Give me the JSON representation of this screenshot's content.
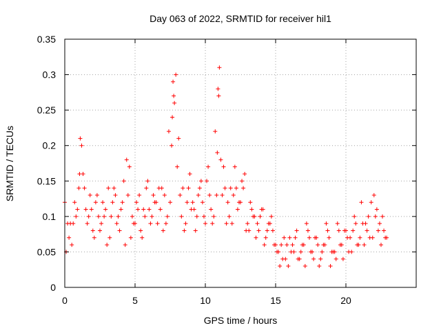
{
  "chart_data": {
    "type": "scatter",
    "title": "Day 063 of 2022, SRMTID for receiver hil1",
    "xlabel": "GPS time / hours",
    "ylabel": "SRMTID / TECUs",
    "xlim": [
      0,
      25
    ],
    "ylim": [
      0,
      0.35
    ],
    "xticks": [
      0,
      5,
      10,
      15,
      20
    ],
    "xtick_labels": [
      "0",
      "5",
      "10",
      "15",
      "20"
    ],
    "yticks": [
      0,
      0.05,
      0.1,
      0.15,
      0.2,
      0.25,
      0.3,
      0.35
    ],
    "ytick_labels": [
      "0",
      "0.05",
      "0.1",
      "0.15",
      "0.2",
      "0.25",
      "0.3",
      "0.35"
    ],
    "grid": true,
    "marker": "+",
    "marker_color": "#ff0000",
    "series": [
      {
        "name": "SRMTID",
        "x": [
          0.0,
          0.3,
          0.6,
          0.9,
          1.1,
          1.4,
          1.7,
          2.0,
          2.3,
          2.6,
          2.9,
          3.2,
          3.5,
          3.8,
          4.1,
          4.4,
          4.7,
          5.0,
          5.3,
          5.6,
          5.9,
          6.2,
          6.5,
          6.8,
          7.1,
          7.4,
          7.7,
          7.8,
          8.0,
          8.3,
          8.6,
          8.9,
          9.2,
          9.5,
          9.8,
          10.1,
          10.4,
          10.7,
          10.9,
          11.0,
          11.3,
          11.6,
          11.9,
          12.2,
          12.5,
          12.8,
          13.1,
          13.4,
          13.7,
          14.0,
          14.3,
          14.6,
          14.9,
          15.2,
          15.5,
          15.8,
          16.1,
          16.4,
          16.7,
          17.0,
          17.3,
          17.6,
          17.9,
          18.2,
          18.5,
          18.8,
          19.1,
          19.4,
          19.7,
          20.0,
          20.3,
          20.6,
          20.9,
          21.2,
          21.5,
          21.8,
          22.1,
          22.4,
          22.7,
          0.1,
          0.4,
          0.7,
          1.0,
          1.2,
          1.5,
          1.8,
          2.1,
          2.4,
          2.7,
          3.0,
          3.3,
          3.6,
          3.9,
          4.2,
          4.5,
          4.8,
          5.1,
          5.4,
          5.7,
          6.0,
          6.3,
          6.6,
          6.9,
          7.2,
          7.5,
          7.6,
          7.9,
          8.1,
          8.4,
          8.7,
          9.0,
          9.3,
          9.6,
          9.9,
          10.2,
          10.5,
          10.8,
          11.1,
          11.4,
          11.7,
          12.0,
          12.3,
          12.6,
          12.9,
          13.2,
          13.5,
          13.8,
          14.1,
          14.4,
          14.7,
          15.0,
          15.3,
          15.6,
          15.9,
          16.2,
          16.5,
          16.8,
          17.1,
          17.4,
          17.7,
          18.0,
          18.3,
          18.6,
          18.9,
          19.2,
          19.5,
          19.8,
          20.1,
          20.4,
          20.7,
          21.0,
          21.3,
          21.6,
          21.9,
          22.2,
          22.5,
          22.8,
          0.2,
          0.5,
          0.8,
          1.05,
          1.3,
          1.6,
          1.9,
          2.2,
          2.5,
          2.8,
          3.1,
          3.4,
          3.7,
          4.0,
          4.3,
          4.6,
          4.9,
          5.2,
          5.5,
          5.8,
          6.1,
          6.4,
          6.7,
          7.0,
          7.3,
          7.65,
          7.75,
          8.2,
          8.5,
          8.8,
          9.1,
          9.4,
          9.7,
          10.0,
          10.3,
          10.6,
          10.85,
          10.95,
          11.2,
          11.5,
          11.8,
          12.1,
          12.4,
          12.7,
          13.0,
          13.3,
          13.6,
          13.9,
          14.2,
          14.5,
          14.8,
          15.1,
          15.4,
          15.7,
          16.0,
          16.3,
          16.6,
          16.9,
          17.2,
          17.5,
          17.8,
          18.1,
          18.4,
          18.7,
          19.0,
          19.3,
          19.6,
          19.9,
          20.2,
          20.5,
          20.8,
          21.1,
          21.4,
          21.7,
          22.0,
          22.3,
          22.6,
          22.9
        ],
        "y": [
          0.12,
          0.07,
          0.09,
          0.11,
          0.21,
          0.14,
          0.1,
          0.08,
          0.13,
          0.09,
          0.11,
          0.07,
          0.14,
          0.1,
          0.12,
          0.18,
          0.07,
          0.09,
          0.13,
          0.11,
          0.15,
          0.1,
          0.12,
          0.11,
          0.13,
          0.22,
          0.29,
          0.26,
          0.17,
          0.1,
          0.09,
          0.16,
          0.11,
          0.13,
          0.12,
          0.15,
          0.11,
          0.22,
          0.28,
          0.31,
          0.17,
          0.12,
          0.09,
          0.14,
          0.12,
          0.16,
          0.08,
          0.1,
          0.09,
          0.11,
          0.07,
          0.09,
          0.06,
          0.05,
          0.04,
          0.06,
          0.05,
          0.07,
          0.04,
          0.06,
          0.08,
          0.05,
          0.07,
          0.04,
          0.06,
          0.07,
          0.05,
          0.09,
          0.06,
          0.08,
          0.07,
          0.1,
          0.06,
          0.09,
          0.08,
          0.12,
          0.1,
          0.09,
          0.08,
          0.05,
          0.09,
          0.12,
          0.14,
          0.2,
          0.11,
          0.13,
          0.07,
          0.1,
          0.12,
          0.06,
          0.1,
          0.13,
          0.08,
          0.15,
          0.13,
          0.1,
          0.12,
          0.08,
          0.1,
          0.11,
          0.13,
          0.09,
          0.14,
          0.09,
          0.12,
          0.2,
          0.3,
          0.21,
          0.14,
          0.12,
          0.11,
          0.08,
          0.14,
          0.1,
          0.17,
          0.09,
          0.13,
          0.18,
          0.14,
          0.1,
          0.13,
          0.11,
          0.15,
          0.08,
          0.12,
          0.1,
          0.08,
          0.11,
          0.08,
          0.1,
          0.06,
          0.03,
          0.07,
          0.03,
          0.06,
          0.08,
          0.05,
          0.03,
          0.07,
          0.04,
          0.06,
          0.05,
          0.09,
          0.03,
          0.05,
          0.08,
          0.04,
          0.07,
          0.05,
          0.09,
          0.07,
          0.06,
          0.1,
          0.07,
          0.11,
          0.06,
          0.07,
          0.09,
          0.06,
          0.1,
          0.16,
          0.16,
          0.09,
          0.11,
          0.12,
          0.08,
          0.1,
          0.14,
          0.12,
          0.09,
          0.11,
          0.06,
          0.17,
          0.09,
          0.11,
          0.07,
          0.14,
          0.09,
          0.12,
          0.14,
          0.08,
          0.1,
          0.24,
          0.27,
          0.13,
          0.08,
          0.14,
          0.12,
          0.1,
          0.15,
          0.09,
          0.13,
          0.1,
          0.19,
          0.27,
          0.13,
          0.09,
          0.14,
          0.17,
          0.12,
          0.14,
          0.09,
          0.11,
          0.07,
          0.1,
          0.06,
          0.09,
          0.08,
          0.05,
          0.06,
          0.04,
          0.07,
          0.05,
          0.04,
          0.06,
          0.09,
          0.05,
          0.07,
          0.03,
          0.06,
          0.08,
          0.05,
          0.04,
          0.06,
          0.08,
          0.05,
          0.08,
          0.06,
          0.12,
          0.09,
          0.07,
          0.13,
          0.08,
          0.1,
          0.07
        ]
      }
    ]
  }
}
